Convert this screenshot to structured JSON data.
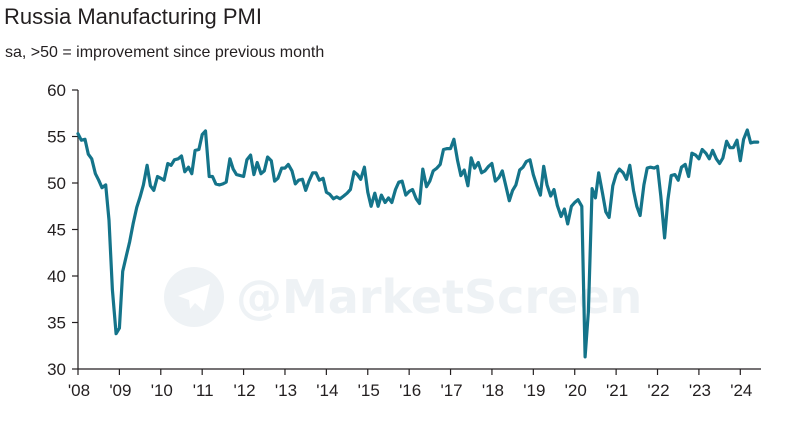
{
  "chart_data": {
    "type": "line",
    "title": "Russia Manufacturing PMI",
    "subtitle": "sa, >50 = improvement since previous month",
    "xlabel": "",
    "ylabel": "",
    "ylim": [
      30,
      60
    ],
    "yticks": [
      30,
      35,
      40,
      45,
      50,
      55,
      60
    ],
    "xlim": [
      2008.0,
      2024.5
    ],
    "xticks": [
      {
        "value": 2008,
        "label": "'08"
      },
      {
        "value": 2009,
        "label": "'09"
      },
      {
        "value": 2010,
        "label": "'10"
      },
      {
        "value": 2011,
        "label": "'11"
      },
      {
        "value": 2012,
        "label": "'12"
      },
      {
        "value": 2013,
        "label": "'13"
      },
      {
        "value": 2014,
        "label": "'14"
      },
      {
        "value": 2015,
        "label": "'15"
      },
      {
        "value": 2016,
        "label": "'16"
      },
      {
        "value": 2017,
        "label": "'17"
      },
      {
        "value": 2018,
        "label": "'18"
      },
      {
        "value": 2019,
        "label": "'19"
      },
      {
        "value": 2020,
        "label": "'20"
      },
      {
        "value": 2021,
        "label": "'21"
      },
      {
        "value": 2022,
        "label": "'22"
      },
      {
        "value": 2023,
        "label": "'23"
      },
      {
        "value": 2024,
        "label": "'24"
      }
    ],
    "grid": false,
    "color": "#14748a",
    "watermark": "@MarketScreen",
    "series": [
      {
        "name": "Russia Manufacturing PMI",
        "x": [
          2008.0,
          2008.08,
          2008.17,
          2008.25,
          2008.33,
          2008.42,
          2008.5,
          2008.58,
          2008.67,
          2008.75,
          2008.83,
          2008.92,
          2009.0,
          2009.08,
          2009.17,
          2009.25,
          2009.33,
          2009.42,
          2009.5,
          2009.58,
          2009.67,
          2009.75,
          2009.83,
          2009.92,
          2010.0,
          2010.08,
          2010.17,
          2010.25,
          2010.33,
          2010.42,
          2010.5,
          2010.58,
          2010.67,
          2010.75,
          2010.83,
          2010.92,
          2011.0,
          2011.08,
          2011.17,
          2011.25,
          2011.33,
          2011.42,
          2011.5,
          2011.58,
          2011.67,
          2011.75,
          2011.83,
          2011.92,
          2012.0,
          2012.08,
          2012.17,
          2012.25,
          2012.33,
          2012.42,
          2012.5,
          2012.58,
          2012.67,
          2012.75,
          2012.83,
          2012.92,
          2013.0,
          2013.08,
          2013.17,
          2013.25,
          2013.33,
          2013.42,
          2013.5,
          2013.58,
          2013.67,
          2013.75,
          2013.83,
          2013.92,
          2014.0,
          2014.08,
          2014.17,
          2014.25,
          2014.33,
          2014.42,
          2014.5,
          2014.58,
          2014.67,
          2014.75,
          2014.83,
          2014.92,
          2015.0,
          2015.08,
          2015.17,
          2015.25,
          2015.33,
          2015.42,
          2015.5,
          2015.58,
          2015.67,
          2015.75,
          2015.83,
          2015.92,
          2016.0,
          2016.08,
          2016.17,
          2016.25,
          2016.33,
          2016.42,
          2016.5,
          2016.58,
          2016.67,
          2016.75,
          2016.83,
          2016.92,
          2017.0,
          2017.08,
          2017.17,
          2017.25,
          2017.33,
          2017.42,
          2017.5,
          2017.58,
          2017.67,
          2017.75,
          2017.83,
          2017.92,
          2018.0,
          2018.08,
          2018.17,
          2018.25,
          2018.33,
          2018.42,
          2018.5,
          2018.58,
          2018.67,
          2018.75,
          2018.83,
          2018.92,
          2019.0,
          2019.08,
          2019.17,
          2019.25,
          2019.33,
          2019.42,
          2019.5,
          2019.58,
          2019.67,
          2019.75,
          2019.83,
          2019.92,
          2020.0,
          2020.08,
          2020.17,
          2020.25,
          2020.33,
          2020.42,
          2020.5,
          2020.58,
          2020.67,
          2020.75,
          2020.83,
          2020.92,
          2021.0,
          2021.08,
          2021.17,
          2021.25,
          2021.33,
          2021.42,
          2021.5,
          2021.58,
          2021.67,
          2021.75,
          2021.83,
          2021.92,
          2022.0,
          2022.08,
          2022.17,
          2022.25,
          2022.33,
          2022.42,
          2022.5,
          2022.58,
          2022.67,
          2022.75,
          2022.83,
          2022.92,
          2023.0,
          2023.08,
          2023.17,
          2023.25,
          2023.33,
          2023.42,
          2023.5,
          2023.58,
          2023.67,
          2023.75,
          2023.83,
          2023.92,
          2024.0,
          2024.08,
          2024.17,
          2024.25,
          2024.33,
          2024.42
        ],
        "values": [
          55.3,
          54.6,
          54.7,
          53.1,
          52.6,
          51.0,
          50.3,
          49.5,
          49.8,
          46.0,
          38.5,
          33.8,
          34.4,
          40.5,
          42.2,
          43.7,
          45.6,
          47.4,
          48.5,
          49.8,
          51.9,
          49.7,
          49.2,
          50.7,
          50.5,
          50.3,
          52.1,
          51.9,
          52.5,
          52.6,
          52.9,
          51.2,
          51.7,
          51.0,
          53.5,
          53.6,
          55.2,
          55.6,
          50.7,
          50.7,
          49.9,
          49.8,
          49.9,
          50.1,
          52.6,
          51.5,
          50.9,
          50.8,
          50.7,
          52.5,
          53.0,
          50.9,
          52.2,
          51.0,
          51.3,
          52.8,
          52.4,
          50.2,
          50.5,
          51.6,
          51.6,
          52.0,
          51.3,
          49.9,
          50.3,
          50.4,
          49.2,
          50.2,
          51.1,
          51.1,
          50.3,
          50.5,
          49.0,
          48.8,
          48.3,
          48.5,
          48.3,
          48.6,
          48.9,
          49.3,
          51.2,
          50.9,
          50.4,
          51.7,
          49.0,
          47.5,
          48.9,
          47.5,
          48.7,
          47.9,
          48.4,
          47.9,
          49.3,
          50.1,
          50.2,
          48.7,
          49.1,
          49.3,
          48.3,
          47.8,
          51.5,
          49.6,
          50.2,
          51.3,
          51.6,
          52.0,
          53.6,
          53.7,
          53.7,
          54.7,
          52.4,
          50.8,
          51.4,
          49.7,
          52.7,
          51.6,
          52.2,
          51.1,
          51.3,
          51.8,
          52.1,
          50.2,
          50.6,
          51.3,
          49.8,
          48.1,
          49.2,
          49.8,
          51.4,
          51.7,
          52.3,
          52.5,
          50.9,
          49.8,
          48.7,
          51.8,
          49.8,
          48.6,
          49.3,
          47.6,
          46.4,
          47.2,
          45.6,
          47.5,
          47.9,
          48.2,
          47.5,
          31.3,
          36.2,
          49.4,
          48.4,
          51.1,
          48.9,
          46.9,
          46.3,
          49.7,
          50.9,
          51.5,
          51.1,
          50.4,
          51.9,
          49.2,
          47.5,
          46.5,
          49.8,
          51.6,
          51.7,
          51.6,
          51.8,
          48.6,
          44.1,
          48.2,
          50.8,
          50.9,
          50.3,
          51.7,
          52.0,
          50.7,
          53.2,
          53.0,
          52.6,
          53.6,
          53.2,
          52.6,
          53.5,
          52.6,
          52.1,
          52.7,
          54.5,
          53.8,
          53.8,
          54.6,
          52.4,
          54.7,
          55.7,
          54.3,
          54.4,
          54.4
        ]
      }
    ]
  }
}
